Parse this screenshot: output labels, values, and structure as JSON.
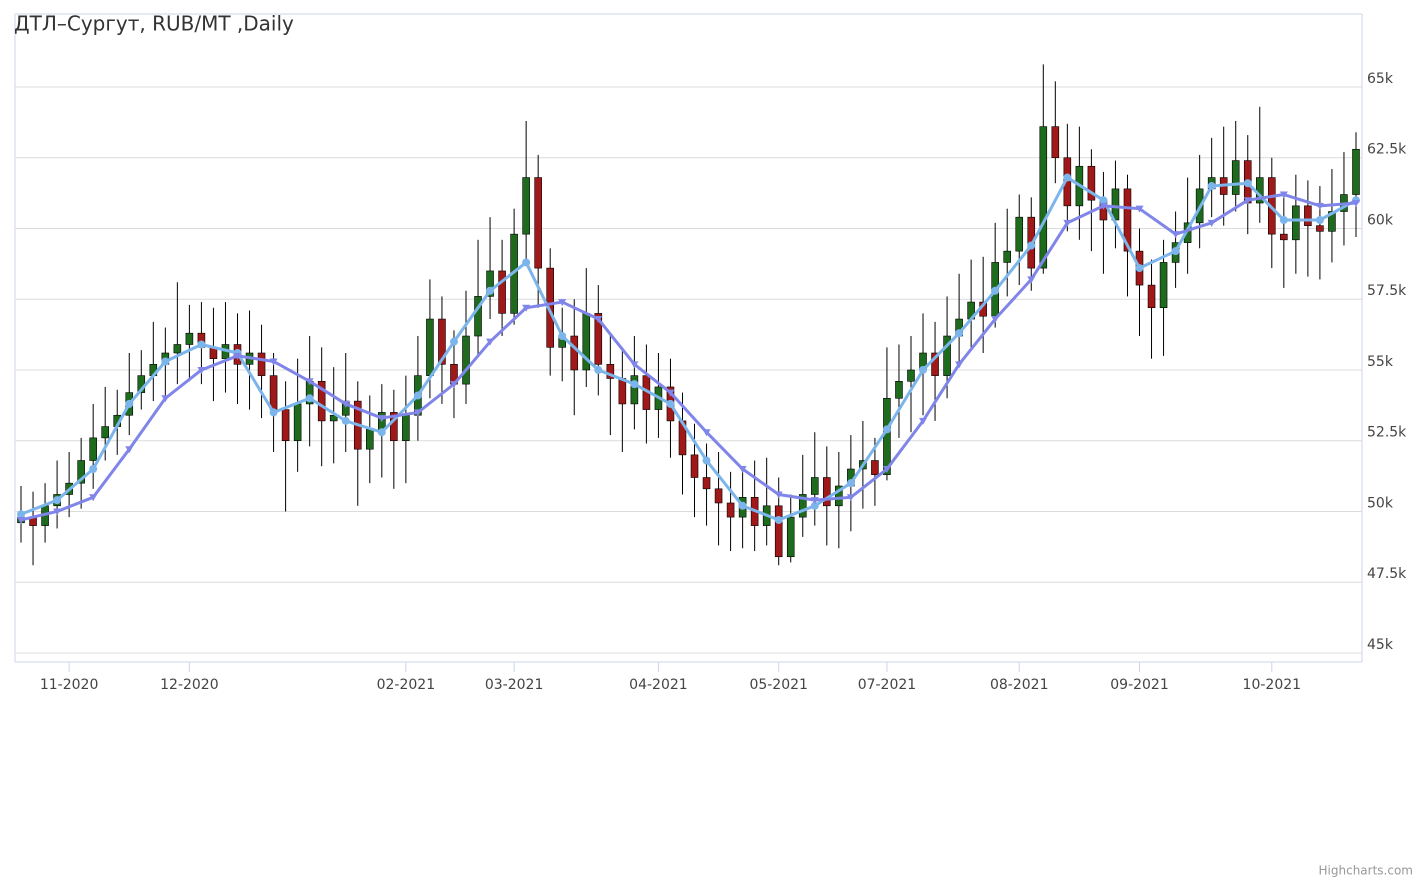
{
  "chart_data": {
    "type": "candlestick",
    "title": "ДТЛ–Сургут, RUB/MT ,Daily",
    "credits": "Highcharts.com",
    "up_color": "#1e6b1e",
    "down_color": "#a01818",
    "wick_color": "#000000",
    "open": [
      49600,
      49800,
      49500,
      50200,
      50600,
      51000,
      51800,
      52600,
      53000,
      53400,
      54200,
      54800,
      55200,
      55600,
      55900,
      56300,
      55800,
      55400,
      55900,
      55200,
      55600,
      54800,
      53600,
      52500,
      53800,
      54600,
      53200,
      53400,
      53900,
      52200,
      52900,
      53500,
      52500,
      53400,
      54800,
      56800,
      55200,
      54500,
      56200,
      57600,
      58500,
      57000,
      59800,
      61800,
      58600,
      55800,
      56200,
      55000,
      57000,
      55200,
      54700,
      53800,
      54800,
      53600,
      54400,
      53200,
      52000,
      51200,
      50800,
      50300,
      49800,
      50500,
      49500,
      50200,
      48400,
      49800,
      50600,
      51200,
      50200,
      50900,
      51500,
      51800,
      51300,
      54000,
      54600,
      55000,
      55600,
      54800,
      56200,
      56800,
      57400,
      56900,
      58800,
      59200,
      60400,
      58600,
      63600,
      62500,
      60800,
      62200,
      61000,
      60300,
      61400,
      59200,
      58000,
      57200,
      58800,
      59500,
      60200,
      61400,
      61800,
      61200,
      62400,
      60900,
      61800,
      59800,
      59600,
      60800,
      60100,
      59900,
      60600,
      61200
    ],
    "high": [
      50900,
      50700,
      51000,
      51800,
      52100,
      52600,
      53800,
      54400,
      54300,
      55600,
      55700,
      56700,
      56500,
      58100,
      57300,
      57400,
      57200,
      57400,
      57000,
      57100,
      56600,
      55600,
      54600,
      55400,
      56200,
      55800,
      55100,
      55600,
      54600,
      54100,
      54500,
      54300,
      54800,
      56200,
      58200,
      57600,
      56400,
      57800,
      59600,
      60400,
      59600,
      60700,
      63800,
      62600,
      59300,
      57200,
      57500,
      58600,
      58000,
      56300,
      55800,
      56200,
      55900,
      55600,
      55400,
      54200,
      53100,
      52400,
      52100,
      51400,
      51600,
      51800,
      51900,
      51200,
      50600,
      52000,
      52800,
      52300,
      52100,
      52700,
      53200,
      52600,
      55800,
      55900,
      56200,
      57000,
      56700,
      57600,
      58400,
      58900,
      59000,
      60200,
      60700,
      61200,
      61100,
      65800,
      65200,
      63700,
      63600,
      62800,
      62000,
      62400,
      61900,
      60000,
      58900,
      59600,
      60600,
      61800,
      62600,
      63200,
      63600,
      63800,
      63300,
      64300,
      62500,
      61300,
      61900,
      61700,
      61500,
      62100,
      62700,
      63400
    ],
    "low": [
      48900,
      48100,
      48900,
      49400,
      49800,
      50100,
      50800,
      51800,
      52000,
      52700,
      53600,
      53900,
      54100,
      54500,
      54600,
      54500,
      53900,
      54200,
      53800,
      53600,
      53300,
      52100,
      50000,
      51400,
      52300,
      51600,
      51700,
      52100,
      50200,
      51000,
      51200,
      50800,
      51000,
      52500,
      54000,
      53800,
      53300,
      53800,
      55500,
      56800,
      56200,
      56600,
      58700,
      57200,
      54800,
      54600,
      53400,
      54400,
      54100,
      52700,
      52100,
      52900,
      52400,
      52600,
      51900,
      50600,
      49800,
      49500,
      48800,
      48600,
      48700,
      48600,
      48800,
      48100,
      48200,
      49100,
      49500,
      48800,
      48700,
      49300,
      50100,
      50200,
      51100,
      52600,
      52800,
      53400,
      53200,
      54000,
      55100,
      55800,
      55600,
      56500,
      57600,
      58000,
      57800,
      58400,
      61600,
      59900,
      59600,
      59200,
      58400,
      59300,
      57600,
      56200,
      55400,
      55500,
      57900,
      58400,
      59300,
      60400,
      60100,
      60600,
      59800,
      60200,
      58600,
      57900,
      58400,
      58300,
      58200,
      58800,
      59400,
      59700
    ],
    "close": [
      49800,
      49500,
      50200,
      50600,
      51000,
      51800,
      52600,
      53000,
      53400,
      54200,
      54800,
      55200,
      55600,
      55900,
      56300,
      55800,
      55400,
      55900,
      55200,
      55600,
      54800,
      53600,
      52500,
      53800,
      54600,
      53200,
      53400,
      53900,
      52200,
      52900,
      53500,
      52500,
      53400,
      54800,
      56800,
      55200,
      54500,
      56200,
      57600,
      58500,
      57000,
      59800,
      61800,
      58600,
      55800,
      56200,
      55000,
      57000,
      55200,
      54700,
      53800,
      54800,
      53600,
      54400,
      53200,
      52000,
      51200,
      50800,
      50300,
      49800,
      50500,
      49500,
      50200,
      48400,
      49800,
      50600,
      51200,
      50200,
      50900,
      51500,
      51800,
      51300,
      54000,
      54600,
      55000,
      55600,
      54800,
      56200,
      56800,
      57400,
      56900,
      58800,
      59200,
      60400,
      58600,
      63600,
      62500,
      60800,
      62200,
      61000,
      60300,
      61400,
      59200,
      58000,
      57200,
      58800,
      59500,
      60200,
      61400,
      61800,
      61200,
      62400,
      60900,
      61800,
      59800,
      59600,
      60800,
      60100,
      59900,
      60600,
      61200,
      62800
    ],
    "moving_averages": [
      {
        "color": "#7cb5ec",
        "marker": "circle",
        "x": [
          0,
          3,
          6,
          9,
          12,
          15,
          18,
          21,
          24,
          27,
          30,
          33,
          36,
          39,
          42,
          45,
          48,
          51,
          54,
          57,
          60,
          63,
          66,
          69,
          72,
          75,
          78,
          81,
          84,
          87,
          90,
          93,
          96,
          99,
          102,
          105,
          108,
          111
        ],
        "values": [
          49900,
          50400,
          51500,
          53800,
          55300,
          55900,
          55600,
          53500,
          54000,
          53200,
          52800,
          54100,
          56000,
          57800,
          58800,
          56200,
          55000,
          54500,
          53800,
          51800,
          50200,
          49700,
          50200,
          51000,
          52900,
          55000,
          56300,
          57800,
          59400,
          61800,
          61000,
          58600,
          59200,
          61500,
          61600,
          60300,
          60300,
          61000
        ]
      },
      {
        "color": "#8085e9",
        "marker": "triangle-down",
        "x": [
          0,
          3,
          6,
          9,
          12,
          15,
          18,
          21,
          24,
          27,
          30,
          33,
          36,
          39,
          42,
          45,
          48,
          51,
          54,
          57,
          60,
          63,
          66,
          69,
          72,
          75,
          78,
          81,
          84,
          87,
          90,
          93,
          96,
          99,
          102,
          105,
          108,
          111
        ],
        "values": [
          49700,
          50000,
          50500,
          52200,
          54000,
          55000,
          55500,
          55300,
          54600,
          53800,
          53300,
          53500,
          54500,
          56000,
          57200,
          57400,
          56800,
          55200,
          54200,
          52800,
          51500,
          50600,
          50400,
          50500,
          51500,
          53200,
          55200,
          56800,
          58200,
          60200,
          60800,
          60700,
          59800,
          60200,
          61000,
          61200,
          60800,
          60900
        ]
      }
    ],
    "xlim": [
      -0.5,
      111.5
    ],
    "xticks": [
      {
        "value": 4,
        "label": "11-2020"
      },
      {
        "value": 14,
        "label": "12-2020"
      },
      {
        "value": 32,
        "label": "02-2021"
      },
      {
        "value": 41,
        "label": "03-2021"
      },
      {
        "value": 53,
        "label": "04-2021"
      },
      {
        "value": 63,
        "label": "05-2021"
      },
      {
        "value": 72,
        "label": "07-2021"
      },
      {
        "value": 83,
        "label": "08-2021"
      },
      {
        "value": 93,
        "label": "09-2021"
      },
      {
        "value": 104,
        "label": "10-2021"
      }
    ],
    "ylim": [
      44680,
      67580
    ],
    "yticks": [
      {
        "value": 45000,
        "label": "45k"
      },
      {
        "value": 47500,
        "label": "47.5k"
      },
      {
        "value": 50000,
        "label": "50k"
      },
      {
        "value": 52500,
        "label": "52.5k"
      },
      {
        "value": 55000,
        "label": "55k"
      },
      {
        "value": 57500,
        "label": "57.5k"
      },
      {
        "value": 60000,
        "label": "60k"
      },
      {
        "value": 62500,
        "label": "62.5k"
      },
      {
        "value": 65000,
        "label": "65k"
      }
    ],
    "grid": true
  }
}
